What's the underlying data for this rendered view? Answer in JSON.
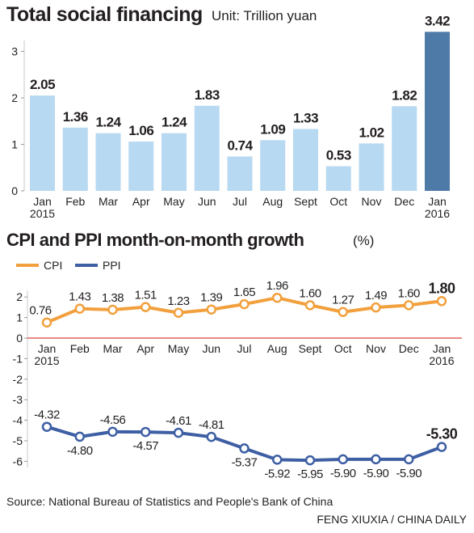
{
  "title": "Total social financing",
  "unit": "Unit: Trillion yuan",
  "subtitle": "CPI and PPI month-on-month growth",
  "subtitle_unit": "(%)",
  "source": "Source: National Bureau of Statistics and People's Bank of China",
  "credit": "FENG XIUXIA / CHINA DAILY",
  "colors": {
    "bar": "#b7d9f1",
    "bar_highlight": "#4e7aa8",
    "cpi": "#f2a03d",
    "ppi": "#3e5fa4",
    "zero_line": "#d9403a",
    "text": "#231f20"
  },
  "chart_data": [
    {
      "type": "bar",
      "title": "Total social financing",
      "ylabel": "Unit: Trillion yuan",
      "categories": [
        "Jan 2015",
        "Feb",
        "Mar",
        "Apr",
        "May",
        "Jun",
        "Jul",
        "Aug",
        "Sept",
        "Oct",
        "Nov",
        "Dec",
        "Jan 2016"
      ],
      "category_lines": [
        [
          "Jan",
          "2015"
        ],
        [
          "Feb"
        ],
        [
          "Mar"
        ],
        [
          "Apr"
        ],
        [
          "May"
        ],
        [
          "Jun"
        ],
        [
          "Jul"
        ],
        [
          "Aug"
        ],
        [
          "Sept"
        ],
        [
          "Oct"
        ],
        [
          "Nov"
        ],
        [
          "Dec"
        ],
        [
          "Jan",
          "2016"
        ]
      ],
      "values": [
        2.05,
        1.36,
        1.24,
        1.06,
        1.24,
        1.83,
        0.74,
        1.09,
        1.33,
        0.53,
        1.02,
        1.82,
        3.42
      ],
      "value_labels": [
        "2.05",
        "1.36",
        "1.24",
        "1.06",
        "1.24",
        "1.83",
        "0.74",
        "1.09",
        "1.33",
        "0.53",
        "1.02",
        "1.82",
        "3.42"
      ],
      "highlight_index": 12,
      "yticks": [
        "0",
        "1",
        "2",
        "3"
      ],
      "ylim": [
        0,
        3.6
      ],
      "grid": false
    },
    {
      "type": "line",
      "title": "CPI and PPI month-on-month growth",
      "ylabel": "(%)",
      "categories": [
        "Jan 2015",
        "Feb",
        "Mar",
        "Apr",
        "May",
        "Jun",
        "Jul",
        "Aug",
        "Sept",
        "Oct",
        "Nov",
        "Dec",
        "Jan 2016"
      ],
      "category_lines": [
        [
          "Jan",
          "2015"
        ],
        [
          "Feb"
        ],
        [
          "Mar"
        ],
        [
          "Apr"
        ],
        [
          "May"
        ],
        [
          "Jun"
        ],
        [
          "Jul"
        ],
        [
          "Aug"
        ],
        [
          "Sept"
        ],
        [
          "Oct"
        ],
        [
          "Nov"
        ],
        [
          "Dec"
        ],
        [
          "Jan",
          "2016"
        ]
      ],
      "yticks": [
        "2",
        "1",
        "0",
        "-1",
        "-2",
        "-3",
        "-4",
        "-5",
        "-6"
      ],
      "ylim": [
        -6.3,
        2.3
      ],
      "legend_placement": "top-left",
      "series": [
        {
          "name": "CPI",
          "values": [
            0.76,
            1.43,
            1.38,
            1.51,
            1.23,
            1.39,
            1.65,
            1.96,
            1.6,
            1.27,
            1.49,
            1.6,
            1.8
          ],
          "labels": [
            "0.76",
            "1.43",
            "1.38",
            "1.51",
            "1.23",
            "1.39",
            "1.65",
            "1.96",
            "1.60",
            "1.27",
            "1.49",
            "1.60",
            "1.80"
          ]
        },
        {
          "name": "PPI",
          "values": [
            -4.32,
            -4.8,
            -4.56,
            -4.57,
            -4.61,
            -4.81,
            -5.37,
            -5.92,
            -5.95,
            -5.9,
            -5.9,
            -5.9,
            -5.3
          ],
          "labels": [
            "-4.32",
            "-4.80",
            "-4.56",
            "-4.57",
            "-4.61",
            "-4.81",
            "-5.37",
            "-5.92",
            "-5.95",
            "-5.90",
            "-5.90",
            "-5.90",
            "-5.30"
          ]
        }
      ],
      "grid": false
    }
  ]
}
